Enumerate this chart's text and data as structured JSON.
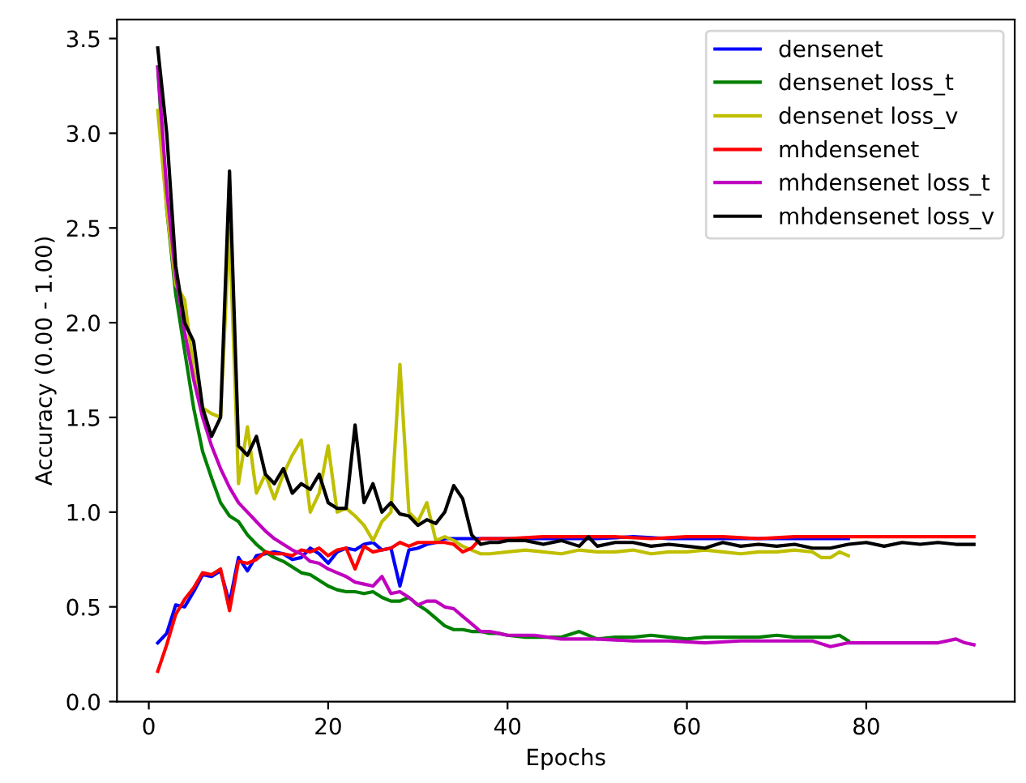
{
  "chart_data": {
    "type": "line",
    "xlabel": "Epochs",
    "ylabel": "Accuracy (0.00 - 1.00)",
    "xlim": [
      -3.55,
      96.55
    ],
    "ylim": [
      0,
      3.6
    ],
    "xticks": [
      0,
      20,
      40,
      60,
      80
    ],
    "yticks": [
      {
        "value": 0,
        "label": "0.0"
      },
      {
        "value": 0.5,
        "label": "0.5"
      },
      {
        "value": 1,
        "label": "1.0"
      },
      {
        "value": 1.5,
        "label": "1.5"
      },
      {
        "value": 2,
        "label": "2.0"
      },
      {
        "value": 2.5,
        "label": "2.5"
      },
      {
        "value": 3,
        "label": "3.0"
      },
      {
        "value": 3.5,
        "label": "3.5"
      }
    ],
    "grid": false,
    "legend": "top right",
    "series": [
      {
        "name": "densenet",
        "color": "#0000ff",
        "x": [
          1,
          2,
          3,
          4,
          5,
          6,
          7,
          8,
          9,
          10,
          11,
          12,
          13,
          14,
          15,
          16,
          17,
          18,
          19,
          20,
          21,
          22,
          23,
          24,
          25,
          26,
          27,
          28,
          29,
          30,
          31,
          32,
          33,
          34,
          35,
          36,
          38,
          42,
          46,
          50,
          54,
          58,
          62,
          66,
          70,
          74,
          78
        ],
        "values": [
          0.31,
          0.36,
          0.51,
          0.5,
          0.58,
          0.67,
          0.66,
          0.69,
          0.52,
          0.76,
          0.69,
          0.77,
          0.78,
          0.79,
          0.78,
          0.75,
          0.76,
          0.81,
          0.78,
          0.73,
          0.79,
          0.81,
          0.8,
          0.83,
          0.84,
          0.8,
          0.81,
          0.61,
          0.8,
          0.81,
          0.83,
          0.84,
          0.86,
          0.86,
          0.86,
          0.86,
          0.86,
          0.86,
          0.86,
          0.86,
          0.87,
          0.86,
          0.86,
          0.86,
          0.86,
          0.86,
          0.86
        ]
      },
      {
        "name": "densenet loss_t",
        "color": "#008000",
        "x": [
          1,
          2,
          3,
          4,
          5,
          6,
          7,
          8,
          9,
          10,
          11,
          12,
          13,
          14,
          15,
          16,
          17,
          18,
          19,
          20,
          21,
          22,
          23,
          24,
          25,
          26,
          27,
          28,
          29,
          30,
          31,
          32,
          33,
          34,
          35,
          36,
          37,
          38,
          39,
          40,
          42,
          44,
          46,
          48,
          50,
          52,
          54,
          56,
          58,
          60,
          62,
          64,
          66,
          68,
          70,
          72,
          74,
          76,
          77,
          78
        ],
        "values": [
          3.35,
          2.6,
          2.15,
          1.85,
          1.55,
          1.32,
          1.18,
          1.05,
          0.98,
          0.95,
          0.88,
          0.83,
          0.79,
          0.76,
          0.74,
          0.71,
          0.68,
          0.67,
          0.64,
          0.61,
          0.59,
          0.58,
          0.58,
          0.57,
          0.58,
          0.55,
          0.53,
          0.53,
          0.55,
          0.51,
          0.48,
          0.44,
          0.4,
          0.38,
          0.38,
          0.37,
          0.37,
          0.36,
          0.36,
          0.35,
          0.34,
          0.34,
          0.34,
          0.37,
          0.33,
          0.34,
          0.34,
          0.35,
          0.34,
          0.33,
          0.34,
          0.34,
          0.34,
          0.34,
          0.35,
          0.34,
          0.34,
          0.34,
          0.35,
          0.32
        ]
      },
      {
        "name": "densenet loss_v",
        "color": "#bfbf00",
        "x": [
          1,
          2,
          3,
          4,
          5,
          6,
          7,
          8,
          9,
          10,
          11,
          12,
          13,
          14,
          15,
          16,
          17,
          18,
          19,
          20,
          21,
          22,
          23,
          24,
          25,
          26,
          27,
          28,
          29,
          30,
          31,
          32,
          33,
          34,
          35,
          36,
          37,
          38,
          40,
          42,
          44,
          46,
          48,
          50,
          52,
          54,
          56,
          58,
          60,
          62,
          64,
          66,
          68,
          70,
          72,
          74,
          75,
          76,
          77,
          78
        ],
        "values": [
          3.12,
          2.6,
          2.2,
          2.12,
          1.75,
          1.55,
          1.52,
          1.5,
          2.5,
          1.15,
          1.45,
          1.1,
          1.2,
          1.07,
          1.2,
          1.3,
          1.38,
          1.0,
          1.1,
          1.35,
          1.0,
          1.02,
          0.98,
          0.93,
          0.85,
          0.95,
          1.0,
          1.78,
          1.0,
          0.95,
          1.05,
          0.85,
          0.87,
          0.85,
          0.82,
          0.8,
          0.78,
          0.78,
          0.79,
          0.8,
          0.79,
          0.78,
          0.8,
          0.79,
          0.79,
          0.8,
          0.78,
          0.79,
          0.79,
          0.8,
          0.79,
          0.78,
          0.79,
          0.79,
          0.8,
          0.79,
          0.76,
          0.76,
          0.79,
          0.77
        ]
      },
      {
        "name": "mhdensenet",
        "color": "#ff0000",
        "x": [
          1,
          2,
          3,
          4,
          5,
          6,
          7,
          8,
          9,
          10,
          11,
          12,
          13,
          14,
          15,
          16,
          17,
          18,
          19,
          20,
          21,
          22,
          23,
          24,
          25,
          26,
          27,
          28,
          29,
          30,
          31,
          32,
          33,
          34,
          35,
          36,
          37,
          40,
          44,
          48,
          52,
          56,
          60,
          64,
          68,
          72,
          76,
          80,
          84,
          88,
          92
        ],
        "values": [
          0.16,
          0.3,
          0.46,
          0.54,
          0.6,
          0.68,
          0.67,
          0.7,
          0.48,
          0.74,
          0.73,
          0.75,
          0.79,
          0.78,
          0.78,
          0.77,
          0.8,
          0.79,
          0.81,
          0.77,
          0.8,
          0.81,
          0.7,
          0.82,
          0.79,
          0.8,
          0.81,
          0.84,
          0.82,
          0.84,
          0.84,
          0.84,
          0.84,
          0.83,
          0.79,
          0.81,
          0.86,
          0.86,
          0.87,
          0.87,
          0.87,
          0.86,
          0.87,
          0.87,
          0.86,
          0.87,
          0.87,
          0.87,
          0.87,
          0.87,
          0.87
        ]
      },
      {
        "name": "mhdensenet loss_t",
        "color": "#bf00bf",
        "x": [
          1,
          2,
          3,
          4,
          5,
          6,
          7,
          8,
          9,
          10,
          11,
          12,
          13,
          14,
          15,
          16,
          17,
          18,
          19,
          20,
          21,
          22,
          23,
          24,
          25,
          26,
          27,
          28,
          29,
          30,
          31,
          32,
          33,
          34,
          35,
          36,
          37,
          38,
          39,
          40,
          43,
          46,
          50,
          54,
          58,
          62,
          66,
          70,
          74,
          76,
          78,
          80,
          84,
          88,
          90,
          91,
          92
        ],
        "values": [
          3.35,
          2.7,
          2.25,
          1.95,
          1.7,
          1.5,
          1.35,
          1.23,
          1.13,
          1.05,
          1.0,
          0.95,
          0.9,
          0.86,
          0.83,
          0.8,
          0.78,
          0.74,
          0.73,
          0.7,
          0.68,
          0.66,
          0.63,
          0.62,
          0.61,
          0.66,
          0.57,
          0.58,
          0.55,
          0.51,
          0.53,
          0.53,
          0.5,
          0.49,
          0.45,
          0.41,
          0.37,
          0.37,
          0.36,
          0.35,
          0.35,
          0.33,
          0.33,
          0.32,
          0.32,
          0.31,
          0.32,
          0.32,
          0.32,
          0.29,
          0.31,
          0.31,
          0.31,
          0.31,
          0.33,
          0.31,
          0.3
        ]
      },
      {
        "name": "mhdensenet loss_v",
        "color": "#000000",
        "x": [
          1,
          2,
          3,
          4,
          5,
          6,
          7,
          8,
          9,
          10,
          11,
          12,
          13,
          14,
          15,
          16,
          17,
          18,
          19,
          20,
          21,
          22,
          23,
          24,
          25,
          26,
          27,
          28,
          29,
          30,
          31,
          32,
          33,
          34,
          35,
          36,
          37,
          38,
          39,
          40,
          42,
          44,
          46,
          48,
          49,
          50,
          52,
          54,
          56,
          58,
          60,
          62,
          64,
          66,
          68,
          70,
          72,
          74,
          76,
          78,
          80,
          82,
          84,
          86,
          88,
          90,
          92
        ],
        "values": [
          3.45,
          3.0,
          2.3,
          2.0,
          1.9,
          1.55,
          1.4,
          1.5,
          2.8,
          1.35,
          1.3,
          1.4,
          1.2,
          1.15,
          1.23,
          1.1,
          1.15,
          1.12,
          1.2,
          1.05,
          1.02,
          1.02,
          1.46,
          1.05,
          1.15,
          1.0,
          1.05,
          0.99,
          0.98,
          0.93,
          0.96,
          0.94,
          1.0,
          1.14,
          1.07,
          0.88,
          0.83,
          0.84,
          0.84,
          0.85,
          0.85,
          0.83,
          0.85,
          0.82,
          0.87,
          0.82,
          0.84,
          0.84,
          0.82,
          0.83,
          0.82,
          0.81,
          0.84,
          0.82,
          0.83,
          0.82,
          0.83,
          0.81,
          0.81,
          0.83,
          0.84,
          0.82,
          0.84,
          0.83,
          0.84,
          0.83,
          0.83
        ]
      }
    ]
  }
}
